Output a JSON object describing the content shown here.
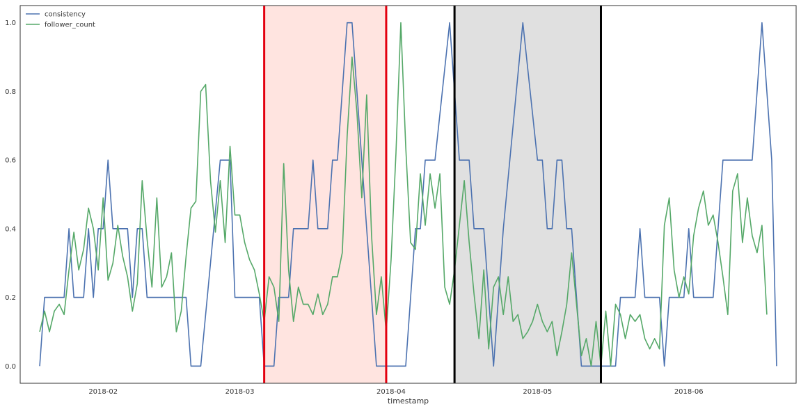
{
  "chart_data": {
    "type": "line",
    "xlabel": "timestamp",
    "ylabel": "",
    "ylim": [
      -0.05,
      1.05
    ],
    "grid": false,
    "legend_placement": "top-left",
    "x_ticks": [
      {
        "date": "2018-02-01",
        "label": "2018-02"
      },
      {
        "date": "2018-03-01",
        "label": "2018-03"
      },
      {
        "date": "2018-04-01",
        "label": "2018-04"
      },
      {
        "date": "2018-05-01",
        "label": "2018-05"
      },
      {
        "date": "2018-06-01",
        "label": "2018-06"
      }
    ],
    "y_ticks": [
      0.0,
      0.2,
      0.4,
      0.6,
      0.8,
      1.0
    ],
    "y_tick_labels": [
      "0.0",
      "0.2",
      "0.4",
      "0.6",
      "0.8",
      "1.0"
    ],
    "xlim": [
      "2018-01-15",
      "2018-06-23"
    ],
    "highlight_regions": [
      {
        "start": "2018-03-06",
        "end": "2018-03-31",
        "fill": "#ffe4e0",
        "edge": "#e3000f"
      },
      {
        "start": "2018-04-14",
        "end": "2018-05-14",
        "fill": "#e0e0e0",
        "edge": "#000000"
      }
    ],
    "series": [
      {
        "name": "consistency",
        "color": "#4c72b0",
        "points": [
          [
            "2018-01-19",
            0.0
          ],
          [
            "2018-01-20",
            0.2
          ],
          [
            "2018-01-23",
            0.2
          ],
          [
            "2018-01-24",
            0.2
          ],
          [
            "2018-01-25",
            0.4
          ],
          [
            "2018-01-26",
            0.2
          ],
          [
            "2018-01-28",
            0.2
          ],
          [
            "2018-01-29",
            0.4
          ],
          [
            "2018-01-30",
            0.2
          ],
          [
            "2018-01-31",
            0.4
          ],
          [
            "2018-02-01",
            0.4
          ],
          [
            "2018-02-02",
            0.6
          ],
          [
            "2018-02-03",
            0.4
          ],
          [
            "2018-02-06",
            0.4
          ],
          [
            "2018-02-07",
            0.2
          ],
          [
            "2018-02-08",
            0.4
          ],
          [
            "2018-02-09",
            0.4
          ],
          [
            "2018-02-10",
            0.2
          ],
          [
            "2018-02-18",
            0.2
          ],
          [
            "2018-02-19",
            0.0
          ],
          [
            "2018-02-21",
            0.0
          ],
          [
            "2018-02-25",
            0.6
          ],
          [
            "2018-02-27",
            0.6
          ],
          [
            "2018-02-28",
            0.2
          ],
          [
            "2018-03-05",
            0.2
          ],
          [
            "2018-03-06",
            0.0
          ],
          [
            "2018-03-08",
            0.0
          ],
          [
            "2018-03-09",
            0.2
          ],
          [
            "2018-03-11",
            0.2
          ],
          [
            "2018-03-12",
            0.4
          ],
          [
            "2018-03-15",
            0.4
          ],
          [
            "2018-03-16",
            0.6
          ],
          [
            "2018-03-17",
            0.4
          ],
          [
            "2018-03-19",
            0.4
          ],
          [
            "2018-03-20",
            0.6
          ],
          [
            "2018-03-21",
            0.6
          ],
          [
            "2018-03-23",
            1.0
          ],
          [
            "2018-03-24",
            1.0
          ],
          [
            "2018-03-27",
            0.4
          ],
          [
            "2018-03-29",
            0.0
          ],
          [
            "2018-04-04",
            0.0
          ],
          [
            "2018-04-06",
            0.4
          ],
          [
            "2018-04-07",
            0.4
          ],
          [
            "2018-04-08",
            0.6
          ],
          [
            "2018-04-09",
            0.6
          ],
          [
            "2018-04-10",
            0.6
          ],
          [
            "2018-04-13",
            1.0
          ],
          [
            "2018-04-15",
            0.6
          ],
          [
            "2018-04-17",
            0.6
          ],
          [
            "2018-04-18",
            0.4
          ],
          [
            "2018-04-20",
            0.4
          ],
          [
            "2018-04-22",
            0.0
          ],
          [
            "2018-04-24",
            0.4
          ],
          [
            "2018-04-28",
            1.0
          ],
          [
            "2018-05-01",
            0.6
          ],
          [
            "2018-05-02",
            0.6
          ],
          [
            "2018-05-03",
            0.4
          ],
          [
            "2018-05-04",
            0.4
          ],
          [
            "2018-05-05",
            0.6
          ],
          [
            "2018-05-06",
            0.6
          ],
          [
            "2018-05-07",
            0.4
          ],
          [
            "2018-05-08",
            0.4
          ],
          [
            "2018-05-10",
            0.0
          ],
          [
            "2018-05-17",
            0.0
          ],
          [
            "2018-05-18",
            0.2
          ],
          [
            "2018-05-21",
            0.2
          ],
          [
            "2018-05-22",
            0.4
          ],
          [
            "2018-05-23",
            0.2
          ],
          [
            "2018-05-26",
            0.2
          ],
          [
            "2018-05-27",
            0.0
          ],
          [
            "2018-05-28",
            0.2
          ],
          [
            "2018-05-31",
            0.2
          ],
          [
            "2018-06-01",
            0.4
          ],
          [
            "2018-06-02",
            0.2
          ],
          [
            "2018-06-06",
            0.2
          ],
          [
            "2018-06-08",
            0.6
          ],
          [
            "2018-06-14",
            0.6
          ],
          [
            "2018-06-16",
            1.0
          ],
          [
            "2018-06-18",
            0.6
          ],
          [
            "2018-06-19",
            0.0
          ]
        ]
      },
      {
        "name": "follower_count",
        "color": "#55a868",
        "points": [
          [
            "2018-01-19",
            0.1
          ],
          [
            "2018-01-20",
            0.16
          ],
          [
            "2018-01-21",
            0.1
          ],
          [
            "2018-01-22",
            0.16
          ],
          [
            "2018-01-23",
            0.18
          ],
          [
            "2018-01-24",
            0.15
          ],
          [
            "2018-01-25",
            0.28
          ],
          [
            "2018-01-26",
            0.39
          ],
          [
            "2018-01-27",
            0.28
          ],
          [
            "2018-01-28",
            0.34
          ],
          [
            "2018-01-29",
            0.46
          ],
          [
            "2018-01-30",
            0.4
          ],
          [
            "2018-01-31",
            0.28
          ],
          [
            "2018-02-01",
            0.49
          ],
          [
            "2018-02-02",
            0.25
          ],
          [
            "2018-02-03",
            0.3
          ],
          [
            "2018-02-04",
            0.41
          ],
          [
            "2018-02-05",
            0.32
          ],
          [
            "2018-02-06",
            0.26
          ],
          [
            "2018-02-07",
            0.16
          ],
          [
            "2018-02-08",
            0.24
          ],
          [
            "2018-02-09",
            0.54
          ],
          [
            "2018-02-10",
            0.37
          ],
          [
            "2018-02-11",
            0.23
          ],
          [
            "2018-02-12",
            0.49
          ],
          [
            "2018-02-13",
            0.23
          ],
          [
            "2018-02-14",
            0.26
          ],
          [
            "2018-02-15",
            0.33
          ],
          [
            "2018-02-16",
            0.1
          ],
          [
            "2018-02-17",
            0.16
          ],
          [
            "2018-02-18",
            0.32
          ],
          [
            "2018-02-19",
            0.46
          ],
          [
            "2018-02-20",
            0.48
          ],
          [
            "2018-02-21",
            0.8
          ],
          [
            "2018-02-22",
            0.82
          ],
          [
            "2018-02-23",
            0.54
          ],
          [
            "2018-02-24",
            0.39
          ],
          [
            "2018-02-25",
            0.54
          ],
          [
            "2018-02-26",
            0.36
          ],
          [
            "2018-02-27",
            0.64
          ],
          [
            "2018-02-28",
            0.44
          ],
          [
            "2018-03-01",
            0.44
          ],
          [
            "2018-03-02",
            0.36
          ],
          [
            "2018-03-03",
            0.31
          ],
          [
            "2018-03-04",
            0.28
          ],
          [
            "2018-03-05",
            0.21
          ],
          [
            "2018-03-06",
            0.13
          ],
          [
            "2018-03-07",
            0.26
          ],
          [
            "2018-03-08",
            0.23
          ],
          [
            "2018-03-09",
            0.13
          ],
          [
            "2018-03-10",
            0.59
          ],
          [
            "2018-03-11",
            0.28
          ],
          [
            "2018-03-12",
            0.13
          ],
          [
            "2018-03-13",
            0.23
          ],
          [
            "2018-03-14",
            0.18
          ],
          [
            "2018-03-15",
            0.18
          ],
          [
            "2018-03-16",
            0.15
          ],
          [
            "2018-03-17",
            0.21
          ],
          [
            "2018-03-18",
            0.15
          ],
          [
            "2018-03-19",
            0.18
          ],
          [
            "2018-03-20",
            0.26
          ],
          [
            "2018-03-21",
            0.26
          ],
          [
            "2018-03-22",
            0.33
          ],
          [
            "2018-03-23",
            0.67
          ],
          [
            "2018-03-24",
            0.9
          ],
          [
            "2018-03-25",
            0.74
          ],
          [
            "2018-03-26",
            0.49
          ],
          [
            "2018-03-27",
            0.79
          ],
          [
            "2018-03-28",
            0.38
          ],
          [
            "2018-03-29",
            0.15
          ],
          [
            "2018-03-30",
            0.26
          ],
          [
            "2018-03-31",
            0.1
          ],
          [
            "2018-04-01",
            0.31
          ],
          [
            "2018-04-02",
            0.62
          ],
          [
            "2018-04-03",
            1.0
          ],
          [
            "2018-04-04",
            0.64
          ],
          [
            "2018-04-05",
            0.36
          ],
          [
            "2018-04-06",
            0.34
          ],
          [
            "2018-04-07",
            0.56
          ],
          [
            "2018-04-08",
            0.41
          ],
          [
            "2018-04-09",
            0.56
          ],
          [
            "2018-04-10",
            0.46
          ],
          [
            "2018-04-11",
            0.56
          ],
          [
            "2018-04-12",
            0.23
          ],
          [
            "2018-04-13",
            0.18
          ],
          [
            "2018-04-14",
            0.28
          ],
          [
            "2018-04-15",
            0.41
          ],
          [
            "2018-04-16",
            0.54
          ],
          [
            "2018-04-17",
            0.36
          ],
          [
            "2018-04-18",
            0.21
          ],
          [
            "2018-04-19",
            0.08
          ],
          [
            "2018-04-20",
            0.28
          ],
          [
            "2018-04-21",
            0.05
          ],
          [
            "2018-04-22",
            0.23
          ],
          [
            "2018-04-23",
            0.26
          ],
          [
            "2018-04-24",
            0.15
          ],
          [
            "2018-04-25",
            0.26
          ],
          [
            "2018-04-26",
            0.13
          ],
          [
            "2018-04-27",
            0.15
          ],
          [
            "2018-04-28",
            0.08
          ],
          [
            "2018-04-29",
            0.1
          ],
          [
            "2018-04-30",
            0.13
          ],
          [
            "2018-05-01",
            0.18
          ],
          [
            "2018-05-02",
            0.13
          ],
          [
            "2018-05-03",
            0.1
          ],
          [
            "2018-05-04",
            0.13
          ],
          [
            "2018-05-05",
            0.03
          ],
          [
            "2018-05-06",
            0.1
          ],
          [
            "2018-05-07",
            0.18
          ],
          [
            "2018-05-08",
            0.33
          ],
          [
            "2018-05-09",
            0.18
          ],
          [
            "2018-05-10",
            0.03
          ],
          [
            "2018-05-11",
            0.08
          ],
          [
            "2018-05-12",
            0.0
          ],
          [
            "2018-05-13",
            0.13
          ],
          [
            "2018-05-14",
            0.0
          ],
          [
            "2018-05-15",
            0.16
          ],
          [
            "2018-05-16",
            0.0
          ],
          [
            "2018-05-17",
            0.18
          ],
          [
            "2018-05-18",
            0.15
          ],
          [
            "2018-05-19",
            0.08
          ],
          [
            "2018-05-20",
            0.15
          ],
          [
            "2018-05-21",
            0.13
          ],
          [
            "2018-05-22",
            0.15
          ],
          [
            "2018-05-23",
            0.08
          ],
          [
            "2018-05-24",
            0.05
          ],
          [
            "2018-05-25",
            0.08
          ],
          [
            "2018-05-26",
            0.05
          ],
          [
            "2018-05-27",
            0.41
          ],
          [
            "2018-05-28",
            0.49
          ],
          [
            "2018-05-29",
            0.28
          ],
          [
            "2018-05-30",
            0.2
          ],
          [
            "2018-05-31",
            0.26
          ],
          [
            "2018-06-01",
            0.21
          ],
          [
            "2018-06-02",
            0.38
          ],
          [
            "2018-06-03",
            0.46
          ],
          [
            "2018-06-04",
            0.51
          ],
          [
            "2018-06-05",
            0.41
          ],
          [
            "2018-06-06",
            0.44
          ],
          [
            "2018-06-07",
            0.36
          ],
          [
            "2018-06-08",
            0.26
          ],
          [
            "2018-06-09",
            0.15
          ],
          [
            "2018-06-10",
            0.51
          ],
          [
            "2018-06-11",
            0.56
          ],
          [
            "2018-06-12",
            0.36
          ],
          [
            "2018-06-13",
            0.49
          ],
          [
            "2018-06-14",
            0.38
          ],
          [
            "2018-06-15",
            0.33
          ],
          [
            "2018-06-16",
            0.41
          ],
          [
            "2018-06-17",
            0.15
          ]
        ]
      }
    ]
  }
}
